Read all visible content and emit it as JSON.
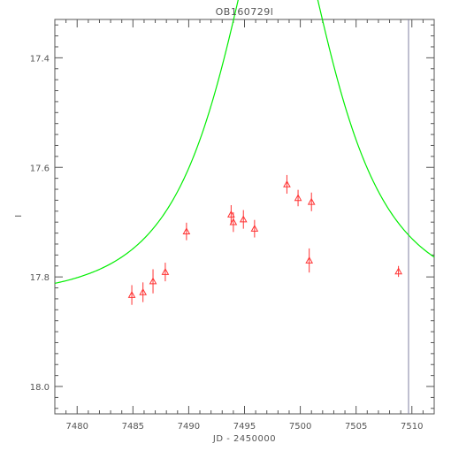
{
  "chart_data": {
    "type": "scatter",
    "title": "OB160729l",
    "xlabel": "JD - 2450000",
    "ylabel": "I",
    "xlim": [
      7478,
      7512
    ],
    "ylim": [
      18.05,
      17.33
    ],
    "y_inverted": true,
    "grid": false,
    "xticks": [
      7480,
      7485,
      7490,
      7495,
      7500,
      7505,
      7510
    ],
    "yticks": [
      17.4,
      17.6,
      17.8,
      18.0
    ],
    "x_minor_step": 1,
    "y_minor_step": 0.02,
    "vertical_marker_x": 7509.7,
    "series": [
      {
        "kind": "points",
        "marker": "triangle-open",
        "color": "#ff3333",
        "points": [
          {
            "x": 7484.9,
            "y": 17.833,
            "err": 0.018
          },
          {
            "x": 7485.9,
            "y": 17.828,
            "err": 0.018
          },
          {
            "x": 7486.8,
            "y": 17.808,
            "err": 0.022
          },
          {
            "x": 7487.9,
            "y": 17.791,
            "err": 0.017
          },
          {
            "x": 7489.8,
            "y": 17.717,
            "err": 0.016
          },
          {
            "x": 7493.8,
            "y": 17.686,
            "err": 0.017
          },
          {
            "x": 7494.0,
            "y": 17.7,
            "err": 0.018
          },
          {
            "x": 7494.9,
            "y": 17.695,
            "err": 0.017
          },
          {
            "x": 7495.9,
            "y": 17.712,
            "err": 0.016
          },
          {
            "x": 7498.8,
            "y": 17.631,
            "err": 0.017
          },
          {
            "x": 7499.8,
            "y": 17.656,
            "err": 0.015
          },
          {
            "x": 7500.8,
            "y": 17.77,
            "err": 0.022
          },
          {
            "x": 7501.0,
            "y": 17.663,
            "err": 0.017
          },
          {
            "x": 7508.8,
            "y": 17.79,
            "err": 0.01
          }
        ]
      },
      {
        "kind": "line",
        "color": "#00ee00",
        "model": {
          "t0": 7498.0,
          "u0": 0.55,
          "tE": 7.8,
          "I_base": 17.84
        }
      }
    ]
  }
}
